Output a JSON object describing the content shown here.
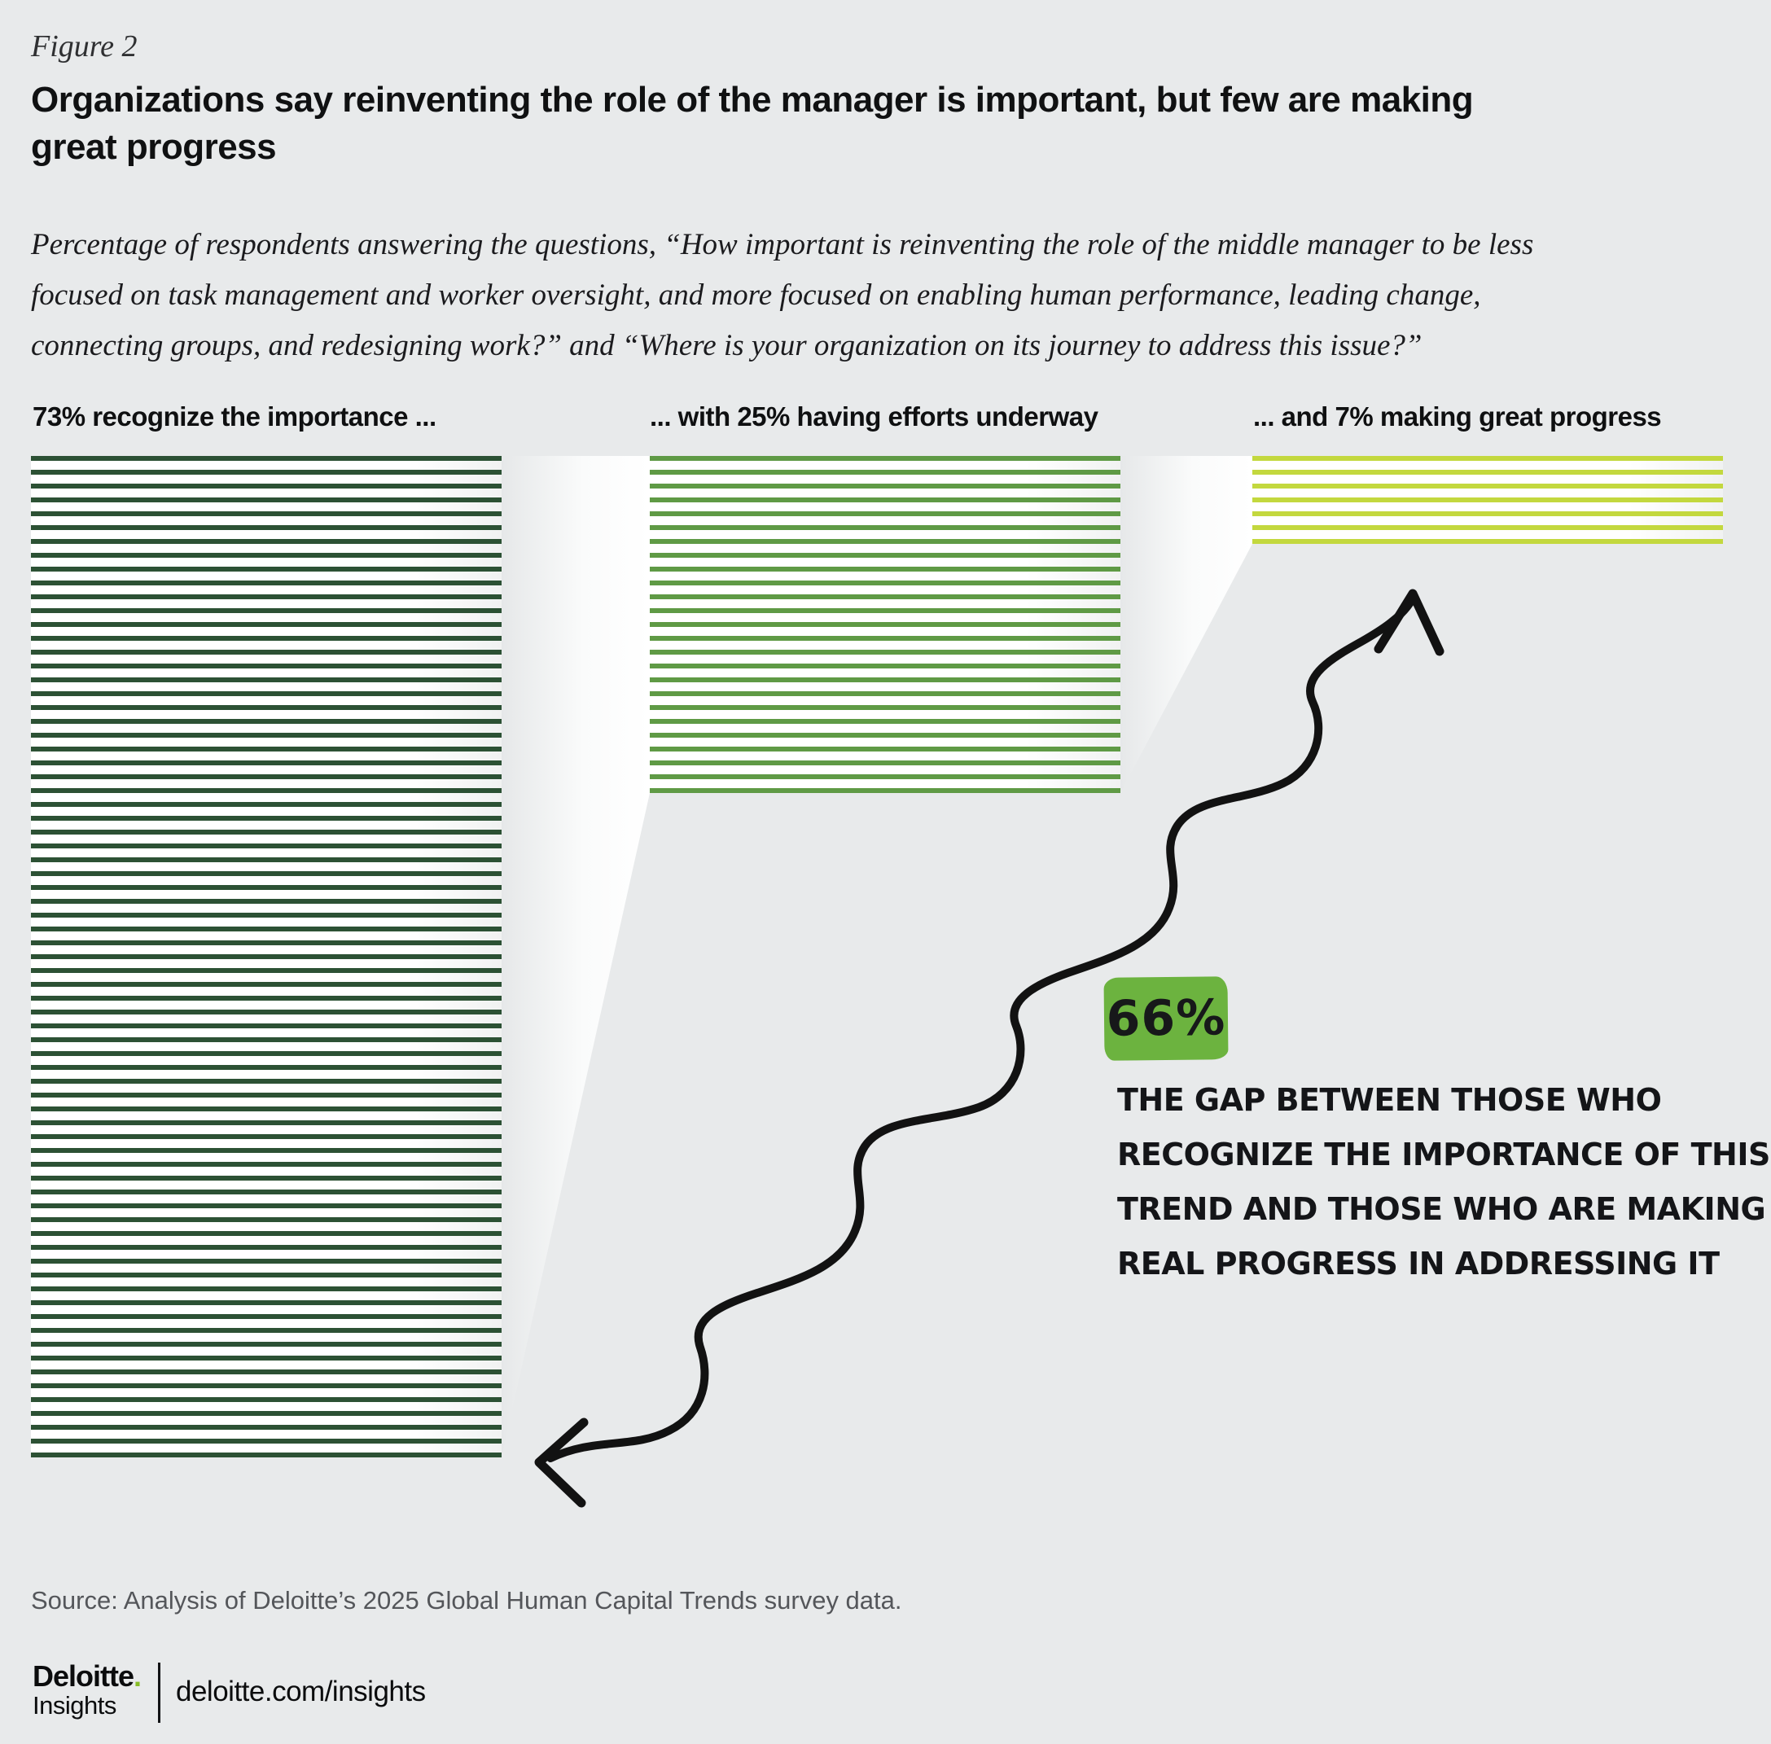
{
  "figure_label": "Figure 2",
  "title": {
    "lines": [
      "Organizations say reinventing the role of the manager is important, but few are making",
      "great progress"
    ]
  },
  "subtitle": {
    "lines": [
      "Percentage of respondents answering the questions, “How important is reinventing the role of the middle manager to be less",
      "focused on task management and worker oversight, and more focused on enabling human performance, leading change,",
      "connecting groups, and redesigning work?” and “Where is your organization on its journey to address this issue?”"
    ]
  },
  "chart_data": {
    "type": "bar",
    "unit": "percent",
    "categories": [
      "Recognize the importance",
      "Have efforts underway",
      "Making great progress"
    ],
    "values": [
      73,
      25,
      7
    ],
    "column_headers": [
      "73% recognize the importance ...",
      "... with 25% having efforts underway",
      "... and 7% making great progress"
    ],
    "stripe_colors": [
      "#2c5134",
      "#5f9a45",
      "#c3d83e"
    ],
    "gap": {
      "badge": "66%",
      "badge_color": "#6cb33f",
      "lines": [
        "THE GAP BETWEEN THOSE WHO",
        "RECOGNIZE THE IMPORTANCE OF THIS",
        "TREND AND THOSE WHO ARE MAKING",
        "REAL PROGRESS IN ADDRESSING IT"
      ]
    },
    "layout": {
      "one_stripe_equals": "1 percentage point",
      "legend": "none",
      "grid": "off"
    }
  },
  "source": "Source: Analysis of Deloitte’s 2025 Global Human Capital Trends survey data.",
  "footer": {
    "logo_main": "Deloitte",
    "logo_dot": ".",
    "logo_sub": "Insights",
    "url": "deloitte.com/insights",
    "dot_color": "#86bc25"
  },
  "colors": {
    "background": "#e8eaeb",
    "ink": "#101112",
    "grey_text": "#54565a"
  }
}
